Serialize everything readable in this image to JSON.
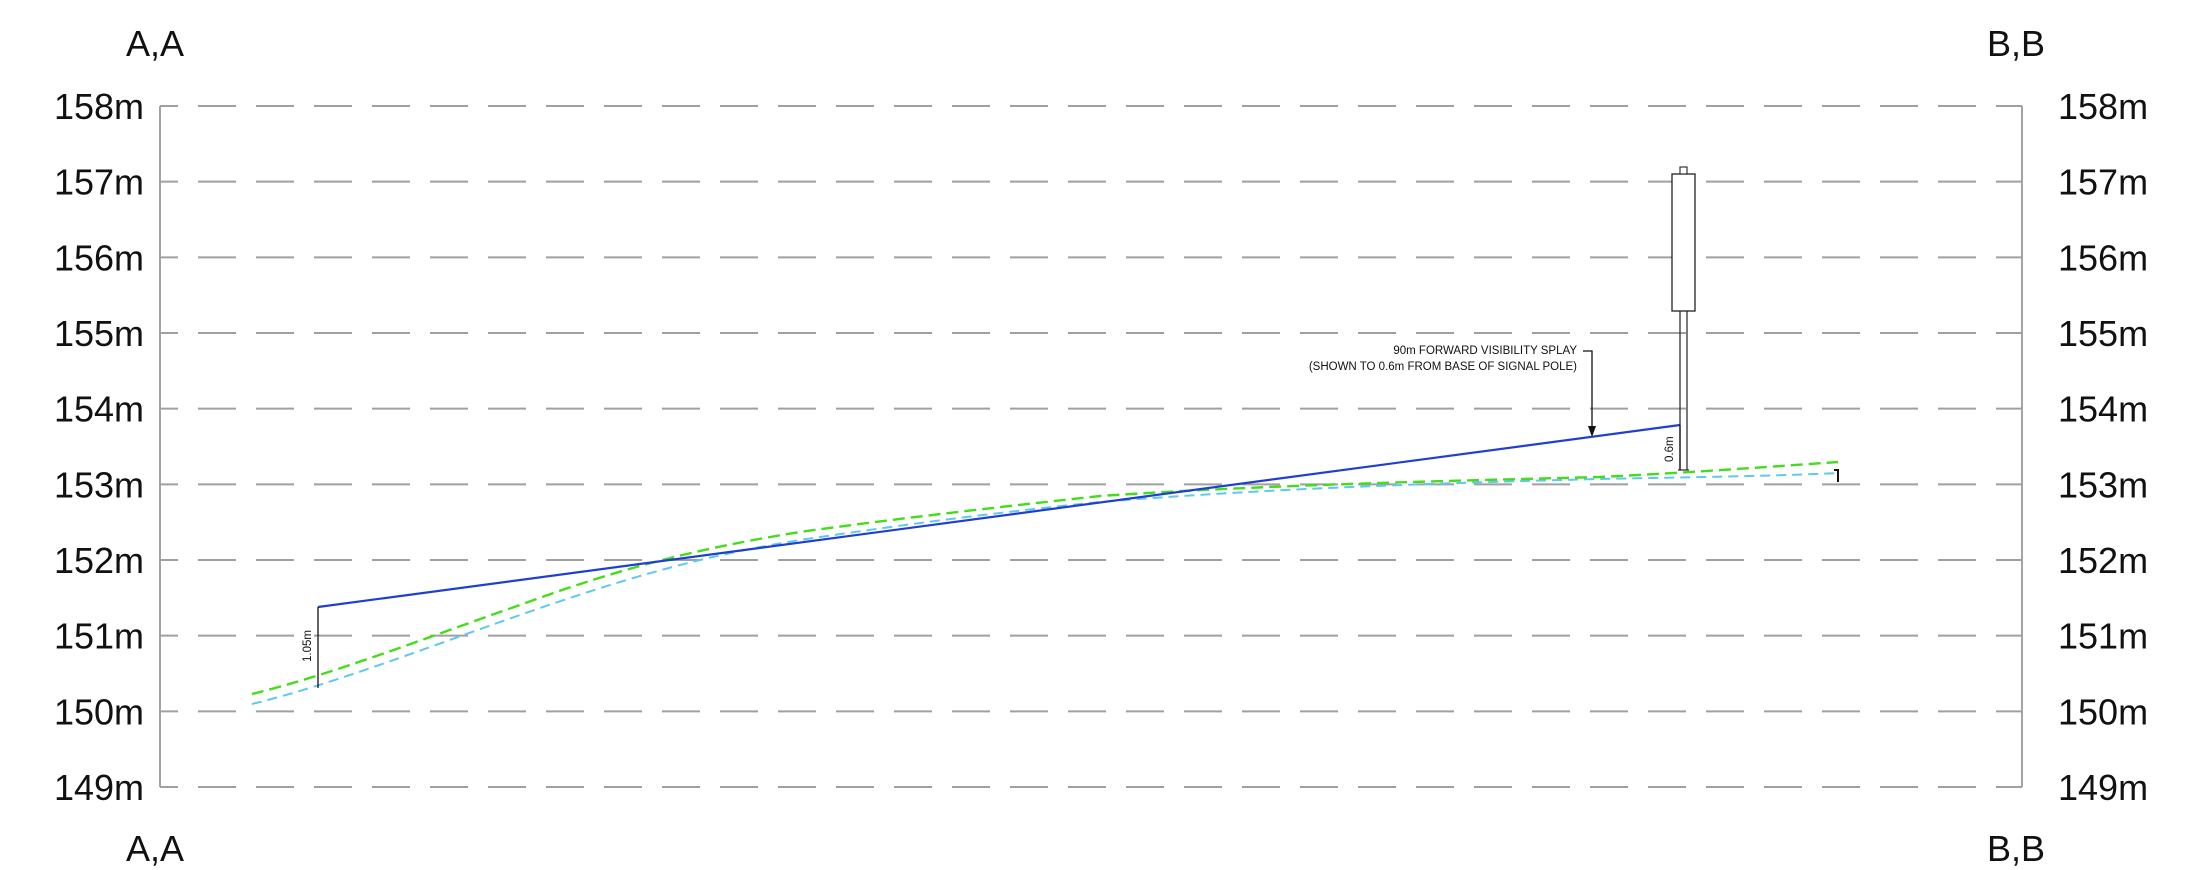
{
  "section": {
    "top_left": "A,A",
    "top_right": "B,B",
    "bottom_left": "A,A",
    "bottom_right": "B,B"
  },
  "levels": [
    {
      "value": 158,
      "label": "158m"
    },
    {
      "value": 157,
      "label": "157m"
    },
    {
      "value": 156,
      "label": "156m"
    },
    {
      "value": 155,
      "label": "155m"
    },
    {
      "value": 154,
      "label": "154m"
    },
    {
      "value": 153,
      "label": "153m"
    },
    {
      "value": 152,
      "label": "152m"
    },
    {
      "value": 151,
      "label": "151m"
    },
    {
      "value": 150,
      "label": "150m"
    },
    {
      "value": 149,
      "label": "149m"
    }
  ],
  "annotation": {
    "line1": "90m FORWARD VISIBILITY SPLAY",
    "line2": "(SHOWN TO 0.6m FROM BASE OF SIGNAL POLE)"
  },
  "dimensions": {
    "left": "1.05m",
    "right": "0.6m"
  },
  "colors": {
    "grid": "#a0a0a0",
    "splay": "#1f3fd0",
    "proposed_ground": "#44dd1a",
    "existing_ground": "#5fc8f0",
    "ink": "#111111"
  }
}
